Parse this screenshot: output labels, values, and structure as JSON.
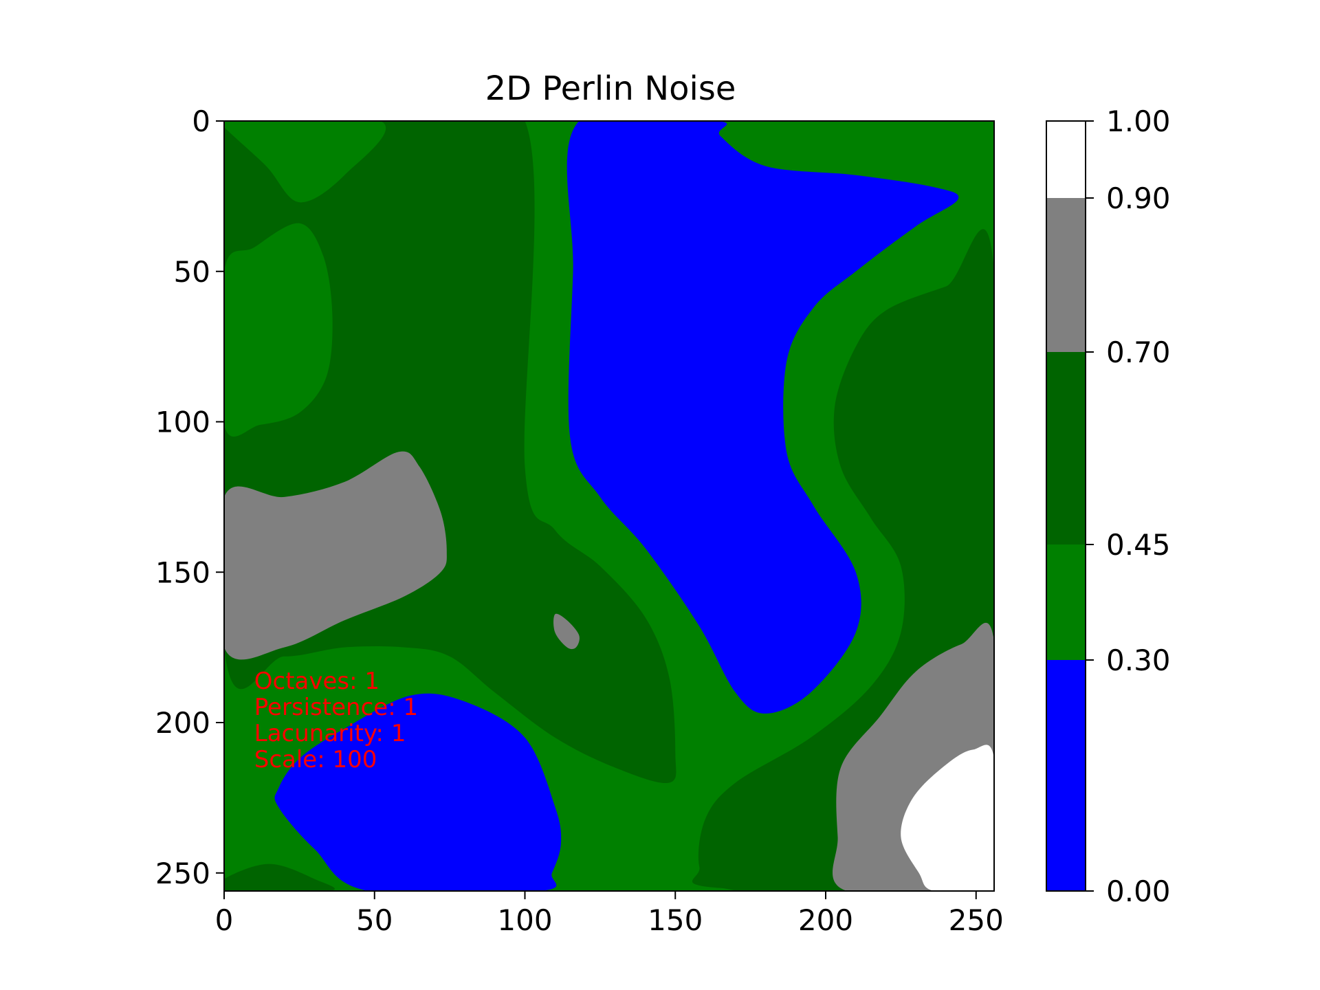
{
  "chart_data": {
    "type": "heatmap",
    "title": "2D Perlin Noise",
    "xlabel": "",
    "ylabel": "",
    "xlim": [
      0,
      256
    ],
    "ylim": [
      256,
      0
    ],
    "y_inverted": true,
    "x_ticks": [
      0,
      50,
      100,
      150,
      200,
      250
    ],
    "y_ticks": [
      0,
      50,
      100,
      150,
      200,
      250
    ],
    "grid": false,
    "colorbar": {
      "levels": [
        0.0,
        0.3,
        0.45,
        0.7,
        0.9,
        1.0
      ],
      "tick_labels": [
        "0.00",
        "0.30",
        "0.45",
        "0.70",
        "0.90",
        "1.00"
      ],
      "colors": [
        "#0000ff",
        "#008000",
        "#006400",
        "#808080",
        "#ffffff"
      ],
      "color_names": [
        "blue",
        "green",
        "darkgreen",
        "gray",
        "white"
      ]
    },
    "annotation": {
      "color": "#ff0000",
      "lines": [
        "Octaves: 1",
        "Persistence: 1",
        "Lacunarity: 1",
        "Scale: 100"
      ]
    },
    "regions": [
      {
        "color_index": 1,
        "points": [
          [
            0,
            0
          ],
          [
            52,
            0
          ],
          [
            40,
            18
          ],
          [
            25,
            27
          ],
          [
            14,
            15
          ],
          [
            0,
            2
          ]
        ]
      },
      {
        "color_index": 1,
        "points": [
          [
            0,
            50
          ],
          [
            10,
            42
          ],
          [
            25,
            34
          ],
          [
            33,
            45
          ],
          [
            36,
            65
          ],
          [
            34,
            85
          ],
          [
            25,
            97
          ],
          [
            12,
            101
          ],
          [
            0,
            101
          ]
        ]
      },
      {
        "color_index": 1,
        "points": [
          [
            100,
            0
          ],
          [
            118,
            0
          ],
          [
            116,
            50
          ],
          [
            115,
            105
          ],
          [
            125,
            125
          ],
          [
            140,
            142
          ],
          [
            158,
            168
          ],
          [
            170,
            190
          ],
          [
            180,
            197
          ],
          [
            195,
            190
          ],
          [
            210,
            170
          ],
          [
            210,
            150
          ],
          [
            196,
            128
          ],
          [
            187,
            110
          ],
          [
            187,
            80
          ],
          [
            196,
            62
          ],
          [
            210,
            50
          ],
          [
            230,
            35
          ],
          [
            244,
            26
          ],
          [
            236,
            22
          ],
          [
            210,
            18
          ],
          [
            180,
            15
          ],
          [
            165,
            5
          ],
          [
            164,
            0
          ],
          [
            256,
            0
          ],
          [
            256,
            255
          ],
          [
            0,
            255
          ],
          [
            0,
            175
          ],
          [
            20,
            178
          ],
          [
            40,
            175
          ],
          [
            60,
            175
          ],
          [
            75,
            178
          ],
          [
            90,
            190
          ],
          [
            110,
            205
          ],
          [
            130,
            215
          ],
          [
            148,
            220
          ],
          [
            150,
            210
          ],
          [
            148,
            185
          ],
          [
            140,
            165
          ],
          [
            125,
            148
          ],
          [
            110,
            136
          ],
          [
            100,
            115
          ]
        ]
      },
      {
        "color_index": 2,
        "points": [
          [
            0,
            2
          ],
          [
            14,
            15
          ],
          [
            25,
            27
          ],
          [
            40,
            18
          ],
          [
            52,
            0
          ],
          [
            100,
            0
          ],
          [
            100,
            115
          ],
          [
            110,
            136
          ],
          [
            125,
            148
          ],
          [
            140,
            165
          ],
          [
            148,
            185
          ],
          [
            150,
            210
          ],
          [
            148,
            220
          ],
          [
            130,
            215
          ],
          [
            110,
            205
          ],
          [
            90,
            190
          ],
          [
            75,
            178
          ],
          [
            60,
            175
          ],
          [
            40,
            175
          ],
          [
            20,
            178
          ],
          [
            0,
            175
          ]
        ]
      },
      {
        "color_index": 2,
        "points": [
          [
            256,
            50
          ],
          [
            240,
            55
          ],
          [
            220,
            63
          ],
          [
            210,
            75
          ],
          [
            203,
            95
          ],
          [
            205,
            115
          ],
          [
            215,
            132
          ],
          [
            225,
            148
          ],
          [
            225,
            170
          ],
          [
            215,
            188
          ],
          [
            195,
            205
          ],
          [
            170,
            220
          ],
          [
            160,
            232
          ],
          [
            158,
            248
          ],
          [
            165,
            255
          ],
          [
            256,
            255
          ]
        ]
      },
      {
        "color_index": 2,
        "points": [
          [
            0,
            252
          ],
          [
            15,
            247
          ],
          [
            30,
            252
          ],
          [
            35,
            256
          ],
          [
            0,
            256
          ]
        ]
      },
      {
        "color_index": 1,
        "points": [
          [
            0,
            0
          ],
          [
            52,
            0
          ],
          [
            40,
            18
          ],
          [
            25,
            27
          ],
          [
            14,
            15
          ],
          [
            0,
            2
          ]
        ]
      },
      {
        "color_index": 1,
        "points": [
          [
            0,
            50
          ],
          [
            10,
            42
          ],
          [
            25,
            34
          ],
          [
            33,
            45
          ],
          [
            36,
            65
          ],
          [
            34,
            85
          ],
          [
            25,
            97
          ],
          [
            12,
            101
          ],
          [
            0,
            101
          ]
        ]
      },
      {
        "color_index": 3,
        "points": [
          [
            0,
            125
          ],
          [
            20,
            125
          ],
          [
            40,
            120
          ],
          [
            58,
            110
          ],
          [
            65,
            115
          ],
          [
            72,
            130
          ],
          [
            74,
            143
          ],
          [
            72,
            150
          ],
          [
            60,
            158
          ],
          [
            40,
            166
          ],
          [
            20,
            175
          ],
          [
            0,
            175
          ]
        ]
      },
      {
        "color_index": 3,
        "points": [
          [
            110,
            164
          ],
          [
            114,
            166
          ],
          [
            118,
            171
          ],
          [
            117,
            175
          ],
          [
            114,
            175
          ],
          [
            110,
            170
          ]
        ]
      },
      {
        "color_index": 3,
        "points": [
          [
            256,
            173
          ],
          [
            245,
            174
          ],
          [
            230,
            183
          ],
          [
            218,
            198
          ],
          [
            205,
            215
          ],
          [
            204,
            238
          ],
          [
            207,
            256
          ],
          [
            256,
            256
          ]
        ]
      },
      {
        "color_index": 0,
        "points": [
          [
            118,
            0
          ],
          [
            164,
            0
          ],
          [
            165,
            5
          ],
          [
            180,
            15
          ],
          [
            210,
            18
          ],
          [
            236,
            22
          ],
          [
            244,
            26
          ],
          [
            230,
            35
          ],
          [
            210,
            50
          ],
          [
            196,
            62
          ],
          [
            187,
            80
          ],
          [
            187,
            110
          ],
          [
            196,
            128
          ],
          [
            210,
            150
          ],
          [
            210,
            170
          ],
          [
            195,
            190
          ],
          [
            180,
            197
          ],
          [
            170,
            190
          ],
          [
            158,
            168
          ],
          [
            140,
            142
          ],
          [
            125,
            125
          ],
          [
            115,
            105
          ],
          [
            116,
            50
          ]
        ]
      },
      {
        "color_index": 0,
        "points": [
          [
            18,
            222
          ],
          [
            25,
            212
          ],
          [
            40,
            202
          ],
          [
            62,
            191
          ],
          [
            80,
            193
          ],
          [
            100,
            205
          ],
          [
            110,
            228
          ],
          [
            112,
            240
          ],
          [
            109,
            250
          ],
          [
            105,
            256
          ],
          [
            48,
            256
          ],
          [
            30,
            242
          ],
          [
            18,
            228
          ]
        ]
      },
      {
        "color_index": 4,
        "points": [
          [
            256,
            212
          ],
          [
            249,
            209
          ],
          [
            240,
            214
          ],
          [
            229,
            225
          ],
          [
            225,
            238
          ],
          [
            231,
            250
          ],
          [
            236,
            256
          ],
          [
            256,
            256
          ]
        ]
      }
    ]
  }
}
